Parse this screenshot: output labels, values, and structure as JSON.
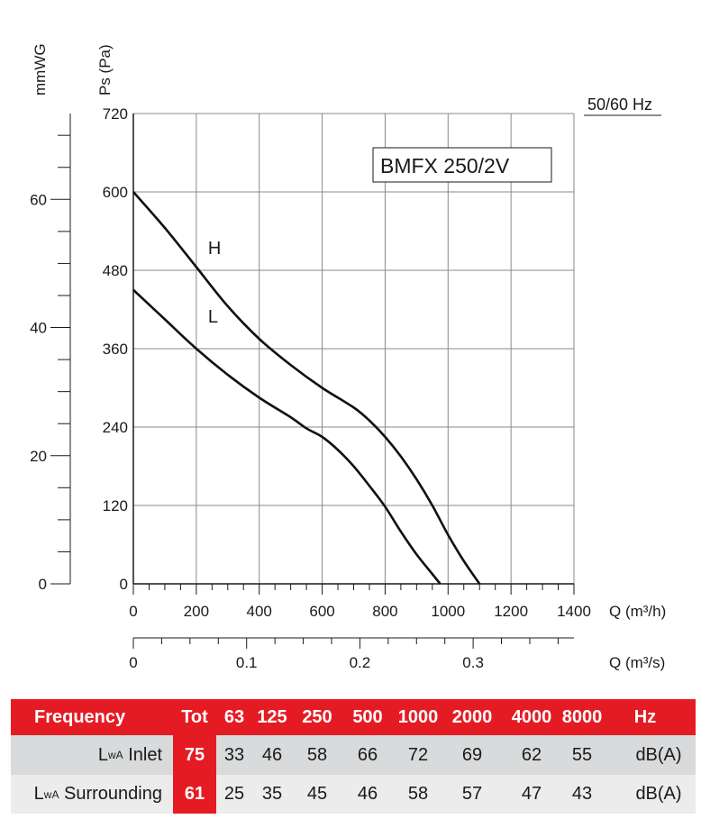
{
  "chart_data": {
    "type": "line",
    "model_label": "BMFX 250/2V",
    "frequency_label": "50/60 Hz",
    "y_pa": {
      "label": "Ps (Pa)",
      "range": [
        0,
        720
      ],
      "ticks": [
        "0",
        "120",
        "240",
        "360",
        "480",
        "600",
        "720"
      ]
    },
    "y_mmwg": {
      "label": "mmWG",
      "range": [
        0,
        73.4
      ],
      "ticks": [
        "0",
        "20",
        "40",
        "60"
      ]
    },
    "x_m3h": {
      "label": "Q (m³/h)",
      "range": [
        0,
        1400
      ],
      "ticks": [
        "0",
        "200",
        "400",
        "600",
        "800",
        "1000",
        "1200",
        "1400"
      ]
    },
    "x_m3s": {
      "label": "Q (m³/s)",
      "range": [
        0,
        0.389
      ],
      "ticks": [
        "0",
        "0.1",
        "0.2",
        "0.3"
      ]
    },
    "grid": true,
    "series": [
      {
        "name": "H",
        "x": [
          0,
          100,
          200,
          300,
          400,
          500,
          600,
          700,
          750,
          800,
          850,
          900,
          950,
          1000,
          1050,
          1100
        ],
        "y": [
          600,
          545,
          485,
          425,
          375,
          335,
          300,
          270,
          250,
          225,
          195,
          160,
          120,
          75,
          35,
          0
        ]
      },
      {
        "name": "L",
        "x": [
          0,
          100,
          200,
          300,
          400,
          500,
          550,
          600,
          650,
          700,
          750,
          800,
          850,
          900,
          950,
          975
        ],
        "y": [
          450,
          405,
          360,
          320,
          285,
          255,
          238,
          225,
          205,
          180,
          150,
          118,
          80,
          45,
          15,
          0
        ]
      }
    ]
  },
  "sound_table": {
    "header": {
      "label": "Frequency",
      "tot": "Tot",
      "bands": [
        "63",
        "125",
        "250",
        "500",
        "1000",
        "2000",
        "4000",
        "8000"
      ],
      "unit": "Hz"
    },
    "rows": [
      {
        "label_main": "L",
        "label_sub": "wA",
        "label_rest": " Inlet",
        "tot": "75",
        "values": [
          "33",
          "46",
          "58",
          "66",
          "72",
          "69",
          "62",
          "55"
        ],
        "unit": "dB(A)"
      },
      {
        "label_main": "L",
        "label_sub": "wA",
        "label_rest": " Surrounding",
        "tot": "61",
        "values": [
          "25",
          "35",
          "45",
          "46",
          "58",
          "57",
          "47",
          "43"
        ],
        "unit": "dB(A)"
      }
    ]
  }
}
